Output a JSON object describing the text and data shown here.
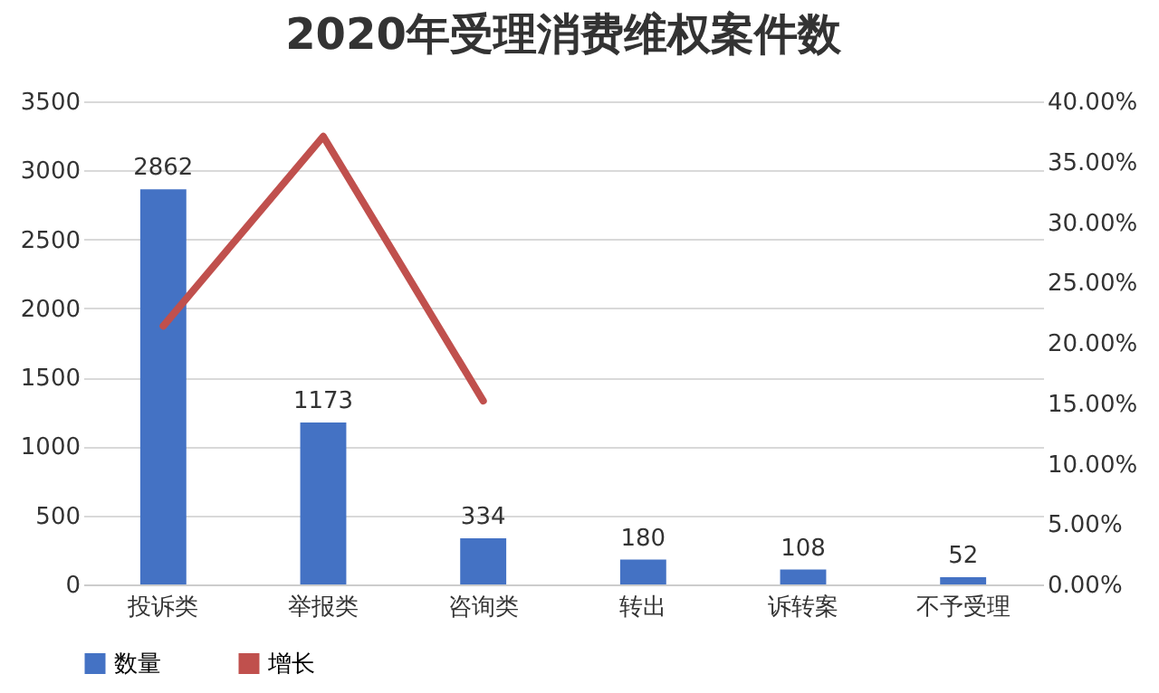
{
  "chart_data": {
    "type": "bar",
    "title": "2020年受理消费维权案件数",
    "categories": [
      "投诉类",
      "举报类",
      "咨询类",
      "转出",
      "诉转案",
      "不予受理"
    ],
    "series": [
      {
        "name": "数量",
        "color": "#4472c4",
        "values": [
          2862,
          1173,
          334,
          180,
          108,
          52
        ],
        "value_labels": [
          "2862",
          "1173",
          "334",
          "180",
          "108",
          "52"
        ]
      },
      {
        "name": "增长",
        "type": "line",
        "axis": "y2",
        "color": "#c0504d",
        "values": [
          21.4,
          37.1,
          15.2,
          null,
          null,
          null
        ]
      }
    ],
    "ylim": [
      0,
      3500
    ],
    "yticks": [
      0,
      500,
      1000,
      1500,
      2000,
      2500,
      3000,
      3500
    ],
    "y2lim": [
      0,
      40
    ],
    "y2ticks": [
      {
        "value": 0,
        "label": "0.00%"
      },
      {
        "value": 5,
        "label": "5.00%"
      },
      {
        "value": 10,
        "label": "10.00%"
      },
      {
        "value": 15,
        "label": "15.00%"
      },
      {
        "value": 20,
        "label": "20.00%"
      },
      {
        "value": 25,
        "label": "25.00%"
      },
      {
        "value": 30,
        "label": "30.00%"
      },
      {
        "value": 35,
        "label": "35.00%"
      },
      {
        "value": 40,
        "label": "40.00%"
      }
    ],
    "grid": "y",
    "legend": "bottom",
    "marker": "none",
    "line_style": "solid"
  }
}
